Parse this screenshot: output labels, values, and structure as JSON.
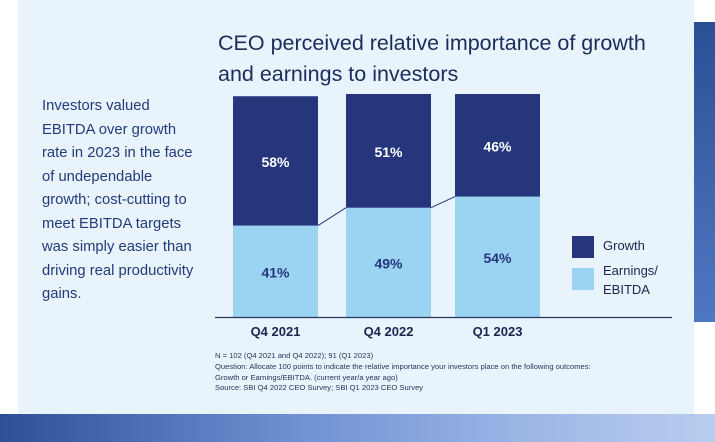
{
  "title": "CEO perceived relative importance of growth and earnings to investors",
  "sidebar_text": "Investors valued EBITDA over growth rate in 2023 in the face of undependable growth; cost-cutting to meet EBITDA targets was simply easier than driving real productivity gains.",
  "colors": {
    "growth": "#25367d",
    "earnings": "#9bd3f3",
    "axis": "#2a3560",
    "panel": "#e8f3fb"
  },
  "chart_data": {
    "type": "bar",
    "stacked": true,
    "categories": [
      "Q4 2021",
      "Q4 2022",
      "Q1 2023"
    ],
    "series": [
      {
        "name": "Earnings/ EBITDA",
        "values": [
          41,
          49,
          54
        ],
        "labels": [
          "41%",
          "49%",
          "54%"
        ]
      },
      {
        "name": "Growth",
        "values": [
          58,
          51,
          46
        ],
        "labels": [
          "58%",
          "51%",
          "46%"
        ]
      }
    ],
    "ylim": [
      0,
      100
    ],
    "legend_position": "right",
    "connector_lines": true
  },
  "legend": [
    {
      "key": "growth",
      "label": "Growth"
    },
    {
      "key": "earnings",
      "label": "Earnings/ EBITDA"
    }
  ],
  "notes": {
    "n": "N = 102 (Q4 2021 and Q4 2022); 91 (Q1 2023)",
    "question_1": "Question: Allocate 100 points to indicate the relative importance your investors place on the following outcomes:",
    "question_2": "Growth or Earnings/EBITDA. (current year/a year ago)",
    "source": "Source: SBI Q4 2022 CEO Survey; SBI Q1 2023 CEO Survey"
  }
}
